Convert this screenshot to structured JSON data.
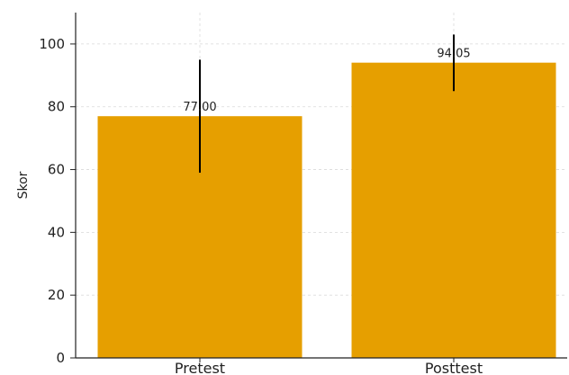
{
  "chart_data": {
    "type": "bar",
    "title": "",
    "xlabel": "",
    "ylabel": "Skor",
    "ylim": [
      0,
      110
    ],
    "yticks": [
      0,
      20,
      40,
      60,
      80,
      100
    ],
    "grid": true,
    "bar_color": "#e69f00",
    "error_color": "#000000",
    "categories": [
      "Pretest",
      "Posttest"
    ],
    "values": [
      77.0,
      94.05
    ],
    "value_labels": [
      "77.00",
      "94.05"
    ],
    "error_low": [
      59,
      85
    ],
    "error_high": [
      95,
      103
    ]
  }
}
